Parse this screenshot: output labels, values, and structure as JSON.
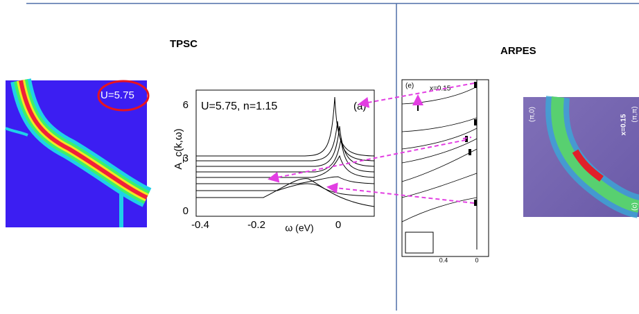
{
  "header": {
    "left_title": "TPSC",
    "right_title": "ARPES"
  },
  "tpsc_map": {
    "label": "U=5.75"
  },
  "tpsc_plot": {
    "annotation": "U=5.75, n=1.15",
    "panel": "(a)",
    "y_label": "A_c(k,ω)",
    "x_label": "ω (eV)",
    "y_ticks": [
      "6",
      "3",
      "0"
    ],
    "x_ticks": [
      "-0.4",
      "-0.2",
      "0"
    ]
  },
  "arpes_plot": {
    "panel": "(e)",
    "doping": "x=0.15",
    "x_ticks": [
      "0.4",
      "0"
    ]
  },
  "arpes_map": {
    "corner_left": "(π,0)",
    "doping": "x=0.15",
    "corner_right": "(π,π)",
    "panel": "(c)"
  }
}
